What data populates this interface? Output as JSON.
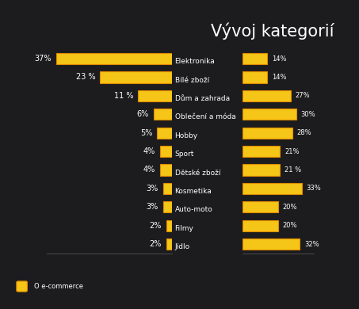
{
  "title": "Vývoj kategorií",
  "footer": "O e-commerce",
  "chart_data": [
    {
      "type": "bar",
      "orientation": "horizontal",
      "color": "#f5c518",
      "categories": [
        "Elektronika",
        "Bílé zboží",
        "Dům a zahrada",
        "Oblečení a móda",
        "Hobby",
        "Sport",
        "Dětské zboží",
        "Kosmetika",
        "Auto-moto",
        "Filmy",
        "Jídlo"
      ],
      "values": [
        37,
        23,
        11,
        6,
        5,
        4,
        4,
        3,
        3,
        2,
        2
      ],
      "value_labels": [
        "37%",
        "23 %",
        "11 %",
        "6%",
        "5%",
        "4%",
        "4%",
        "3%",
        "3%",
        "2%",
        "2%"
      ],
      "data_labels": true,
      "tick_labels": false,
      "xlim": [
        0,
        40
      ]
    },
    {
      "type": "bar",
      "orientation": "horizontal",
      "color": "#f5c518",
      "values": [
        14,
        14,
        27,
        30,
        28,
        21,
        21,
        33,
        20,
        20,
        32
      ],
      "value_labels": [
        "14%",
        "14%",
        "27%",
        "30%",
        "28%",
        "21%",
        "21 %",
        "33%",
        "20%",
        "20%",
        "32%"
      ],
      "data_labels": true,
      "tick_labels": false,
      "xlim": [
        0,
        40
      ]
    }
  ]
}
